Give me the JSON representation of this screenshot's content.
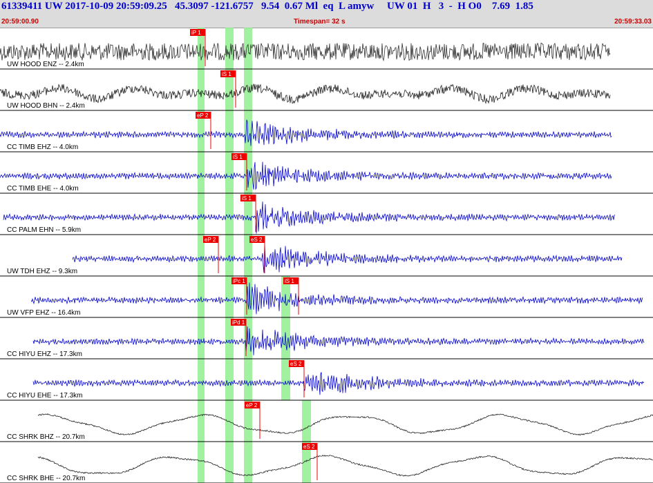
{
  "header": {
    "title_line": "61339411 UW 2017-10-09 20:59:09.25   45.3097 -121.6757   9.54  0.67 Ml  eq  L amyw     UW 01  H   3  -  H O0    7.69  1.85",
    "start_time": "20:59:00.90",
    "end_time": "20:59:33.03",
    "timespan": "Timespan=  32 s"
  },
  "colors": {
    "header_bg": "#dcdcdc",
    "title_text": "#0000cc",
    "time_text": "#cc0000",
    "pick_red": "#ee0000",
    "window_green": "#90ee90",
    "trace_blue": "#0000cc",
    "trace_black": "#202020"
  },
  "traces": [
    {
      "label": "UW HOOD ENZ -- 2.4km",
      "color": "#303030",
      "amp": 0.55,
      "style": "noise",
      "start": 0,
      "end": 883,
      "picks": [
        {
          "label": "iP 1",
          "x": 297
        }
      ]
    },
    {
      "label": "UW HOOD BHN -- 2.4km",
      "color": "#202020",
      "amp": 0.3,
      "style": "wavy",
      "start": 0,
      "end": 883,
      "picks": [
        {
          "label": "iS 1",
          "x": 341
        }
      ]
    },
    {
      "label": "CC TIMB EHZ -- 4.0km",
      "color": "#0000cc",
      "amp": 0.25,
      "style": "event",
      "start": 0,
      "end": 885,
      "onset": 355,
      "picks": [
        {
          "label": "eP 2",
          "x": 305
        }
      ]
    },
    {
      "label": "CC TIMB EHE -- 4.0km",
      "color": "#0000cc",
      "amp": 0.25,
      "style": "event",
      "start": 0,
      "end": 885,
      "onset": 358,
      "picks": [
        {
          "label": "iS 1",
          "x": 357
        }
      ]
    },
    {
      "label": "CC PALM EHN -- 5.9km",
      "color": "#0000cc",
      "amp": 0.15,
      "style": "event",
      "start": 5,
      "end": 890,
      "onset": 370,
      "picks": [
        {
          "label": "iS 1",
          "x": 370
        }
      ]
    },
    {
      "label": "UW TDH EHZ -- 9.3km",
      "color": "#0000cc",
      "amp": 0.1,
      "style": "event",
      "start": 105,
      "end": 900,
      "onset": 380,
      "picks": [
        {
          "label": "eP 2",
          "x": 316
        },
        {
          "label": "eS 2",
          "x": 383
        }
      ]
    },
    {
      "label": "UW VFP EHZ -- 16.4km",
      "color": "#0000cc",
      "amp": 0.15,
      "style": "event",
      "start": 45,
      "end": 930,
      "onset": 358,
      "picks": [
        {
          "label": "iPc 1",
          "x": 357
        },
        {
          "label": "iS 1",
          "x": 432
        }
      ]
    },
    {
      "label": "CC HIYU EHZ -- 17.3km",
      "color": "#0000cc",
      "amp": 0.2,
      "style": "event",
      "start": 48,
      "end": 932,
      "onset": 356,
      "picks": [
        {
          "label": "iPd 1",
          "x": 356
        }
      ]
    },
    {
      "label": "CC HIYU EHE -- 17.3km",
      "color": "#0000cc",
      "amp": 0.04,
      "style": "event",
      "start": 48,
      "end": 932,
      "onset": 440,
      "picks": [
        {
          "label": "eS 2",
          "x": 440
        }
      ]
    },
    {
      "label": "CC SHRK BHZ -- 20.7km",
      "color": "#202020",
      "amp": 0.05,
      "style": "slow",
      "start": 55,
      "end": 945,
      "picks": [
        {
          "label": "eP 2",
          "x": 376
        }
      ]
    },
    {
      "label": "CC SHRK BHE -- 20.7km",
      "color": "#202020",
      "amp": 0.05,
      "style": "slow",
      "start": 55,
      "end": 945,
      "picks": [
        {
          "label": "eS 2",
          "x": 459
        }
      ]
    }
  ]
}
